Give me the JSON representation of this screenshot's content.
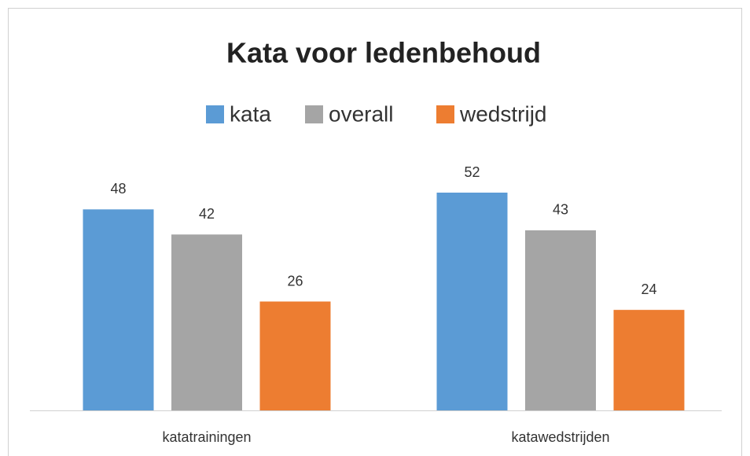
{
  "chart_data": {
    "type": "bar",
    "title": "Kata voor ledenbehoud",
    "categories": [
      "katatrainingen",
      "katawedstrijden"
    ],
    "series": [
      {
        "name": "kata",
        "color": "#5b9bd5",
        "values": [
          48,
          52
        ]
      },
      {
        "name": "overall",
        "color": "#a5a5a5",
        "values": [
          42,
          43
        ]
      },
      {
        "name": "wedstrijd",
        "color": "#ed7d31",
        "values": [
          26,
          24
        ]
      }
    ]
  }
}
